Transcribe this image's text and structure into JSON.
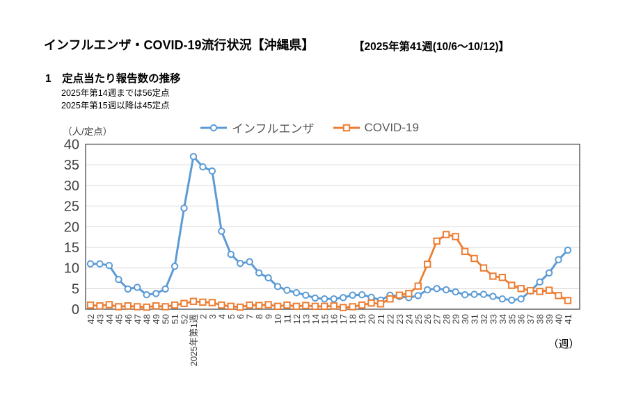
{
  "header": {
    "title": "インフルエンザ・COVID-19流行状況【沖縄県】",
    "period": "【2025年第41週(10/6～10/12)】"
  },
  "section": {
    "heading": "1　定点当たり報告数の推移",
    "notes": [
      "2025年第14週までは56定点",
      "2025年第15週以降は45定点"
    ]
  },
  "chart_data": {
    "type": "line",
    "title": "",
    "y_unit_label": "（人/定点）",
    "x_unit_label": "（週）",
    "ylim": [
      0,
      40
    ],
    "y_ticks": [
      0,
      5,
      10,
      15,
      20,
      25,
      30,
      35,
      40
    ],
    "grid": true,
    "legend_position": "top",
    "categories": [
      "42",
      "43",
      "44",
      "45",
      "46",
      "47",
      "48",
      "49",
      "50",
      "51",
      "52",
      "2025年第1週",
      "2",
      "3",
      "4",
      "5",
      "6",
      "7",
      "8",
      "9",
      "10",
      "11",
      "12",
      "13",
      "14",
      "15",
      "16",
      "17",
      "18",
      "19",
      "20",
      "21",
      "22",
      "23",
      "24",
      "25",
      "26",
      "27",
      "28",
      "29",
      "30",
      "31",
      "32",
      "33",
      "34",
      "35",
      "36",
      "37",
      "38",
      "39",
      "40",
      "41"
    ],
    "series": [
      {
        "name": "インフルエンザ",
        "marker": "circle",
        "color": "#5B9BD5",
        "values": [
          11.0,
          11.0,
          10.6,
          7.2,
          4.9,
          5.3,
          3.5,
          3.8,
          4.9,
          10.4,
          24.5,
          37.0,
          34.5,
          33.5,
          18.9,
          13.3,
          11.1,
          11.5,
          8.8,
          7.6,
          5.5,
          4.6,
          4.0,
          3.4,
          2.7,
          2.5,
          2.5,
          2.8,
          3.4,
          3.5,
          2.9,
          2.2,
          3.4,
          3.1,
          2.8,
          3.3,
          4.7,
          5.0,
          4.7,
          4.2,
          3.5,
          3.6,
          3.6,
          3.1,
          2.5,
          2.2,
          2.5,
          4.4,
          6.6,
          8.8,
          12.0,
          14.3
        ]
      },
      {
        "name": "COVID-19",
        "marker": "square",
        "color": "#ED7D31",
        "values": [
          1.0,
          0.8,
          1.1,
          0.6,
          0.8,
          0.6,
          0.5,
          0.8,
          0.6,
          1.0,
          1.4,
          1.9,
          1.7,
          1.6,
          1.0,
          0.7,
          0.5,
          1.0,
          0.9,
          1.1,
          0.7,
          1.0,
          0.7,
          0.9,
          0.7,
          0.7,
          0.8,
          0.4,
          0.6,
          1.0,
          1.5,
          1.3,
          2.5,
          3.4,
          3.8,
          5.6,
          10.9,
          16.5,
          18.1,
          17.6,
          14.0,
          12.3,
          10.0,
          8.0,
          7.7,
          5.8,
          5.0,
          4.5,
          4.3,
          4.6,
          3.3,
          2.1
        ]
      }
    ],
    "colors": {
      "grid": "#D9D9D9",
      "axis": "#595959",
      "tick_text": "#404040"
    }
  }
}
